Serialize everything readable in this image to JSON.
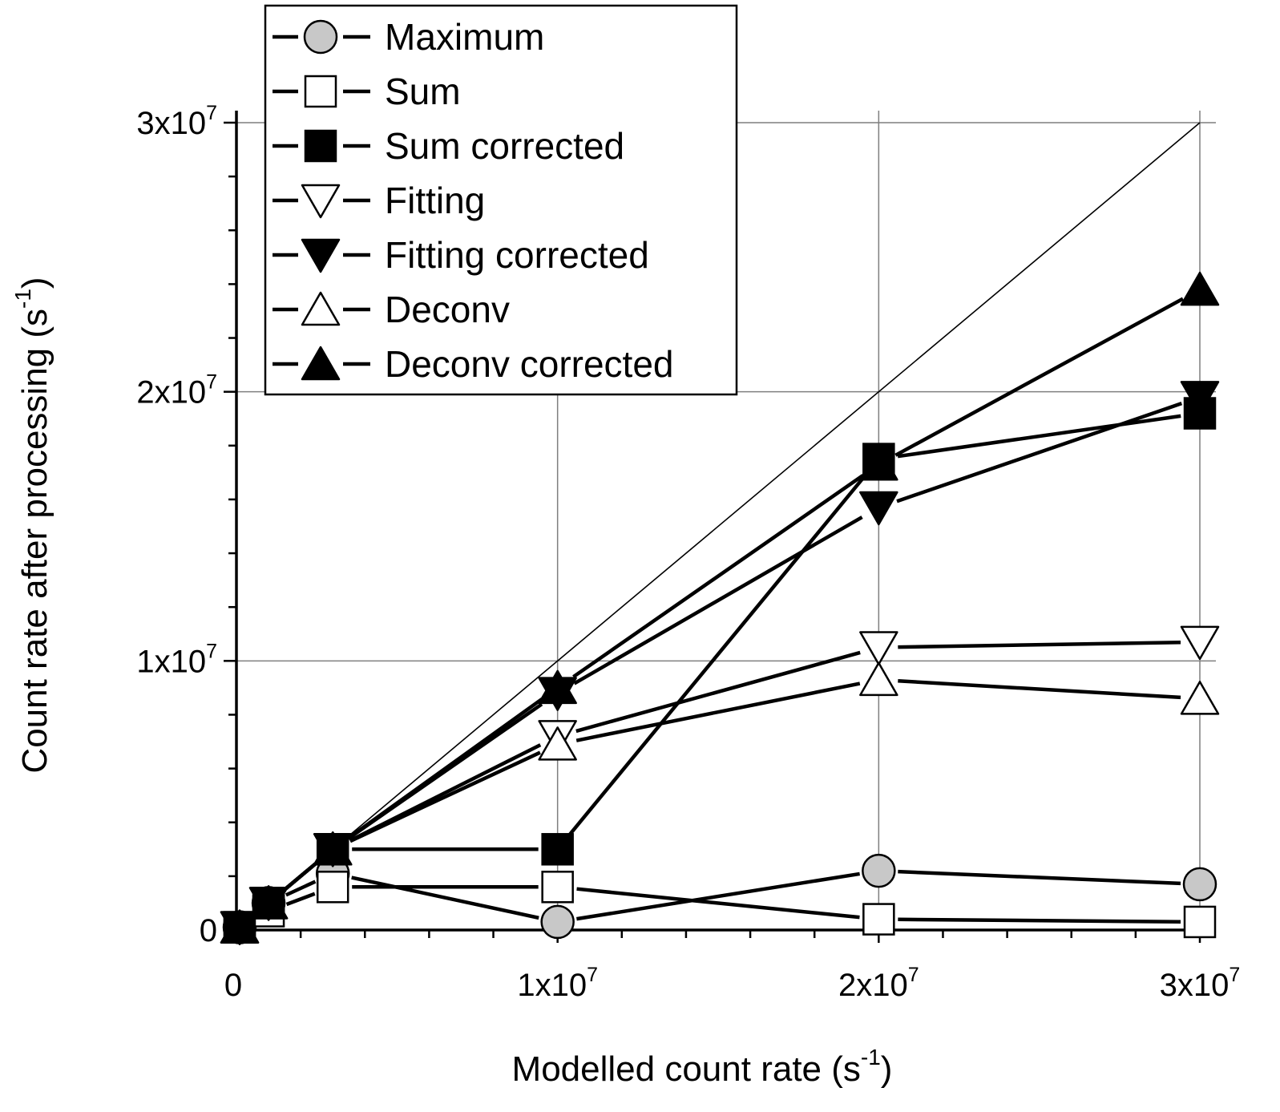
{
  "chart_data": {
    "type": "line",
    "xlabel": {
      "base": "Modelled count rate (s",
      "exp": "-1",
      "tail": ")"
    },
    "ylabel": {
      "base": "Count rate after processing (s",
      "exp": "-1",
      "tail": ")"
    },
    "xlim": [
      0,
      30000000
    ],
    "ylim": [
      0,
      30000000
    ],
    "grid": true,
    "legend_position": "top-left",
    "x_ticks": [
      {
        "value": 0,
        "mantissa": "0",
        "exp": ""
      },
      {
        "value": 10000000,
        "mantissa": "1x10",
        "exp": "7"
      },
      {
        "value": 20000000,
        "mantissa": "2x10",
        "exp": "7"
      },
      {
        "value": 30000000,
        "mantissa": "3x10",
        "exp": "7"
      }
    ],
    "y_ticks": [
      {
        "value": 0,
        "mantissa": "0",
        "exp": ""
      },
      {
        "value": 10000000,
        "mantissa": "1x10",
        "exp": "7"
      },
      {
        "value": 20000000,
        "mantissa": "2x10",
        "exp": "7"
      },
      {
        "value": 30000000,
        "mantissa": "3x10",
        "exp": "7"
      }
    ],
    "x": [
      100000,
      1000000,
      3000000,
      10000000,
      20000000,
      30000000
    ],
    "reference_line": {
      "x": [
        0,
        30000000
      ],
      "y": [
        0,
        30000000
      ]
    },
    "series": [
      {
        "name": "Maximum",
        "marker": "circle",
        "fill": "#c8c8c8",
        "values": [
          100000,
          1000000,
          2100000,
          300000,
          2200000,
          1700000
        ]
      },
      {
        "name": "Sum",
        "marker": "square",
        "fill": "#ffffff",
        "values": [
          100000,
          700000,
          1600000,
          1600000,
          400000,
          300000
        ]
      },
      {
        "name": "Sum corrected",
        "marker": "square",
        "fill": "#000000",
        "values": [
          100000,
          1000000,
          3000000,
          3000000,
          17500000,
          19200000
        ]
      },
      {
        "name": "Fitting",
        "marker": "triangle-down",
        "fill": "#ffffff",
        "values": [
          100000,
          1000000,
          3000000,
          7200000,
          10500000,
          10700000
        ]
      },
      {
        "name": "Fitting corrected",
        "marker": "triangle-down",
        "fill": "#000000",
        "values": [
          100000,
          1000000,
          3000000,
          8800000,
          15700000,
          19800000
        ]
      },
      {
        "name": "Deconv",
        "marker": "triangle-up",
        "fill": "#ffffff",
        "values": [
          100000,
          1000000,
          3000000,
          6900000,
          9300000,
          8600000
        ]
      },
      {
        "name": "Deconv corrected",
        "marker": "triangle-up",
        "fill": "#000000",
        "values": [
          100000,
          1000000,
          3000000,
          9000000,
          17300000,
          23800000
        ]
      }
    ]
  }
}
